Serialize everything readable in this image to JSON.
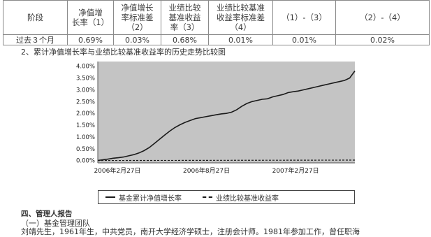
{
  "table": {
    "headers": [
      "阶段",
      "净值增\n长率（1）",
      "净值增长\n率标准差\n（2）",
      "业绩比较\n基准收益\n率（3）",
      "业绩比较基准\n收益率标准差\n（4）",
      "（1）-（3）",
      "（2）-（4）"
    ],
    "rows": [
      [
        "过去３个月",
        "0.69%",
        "0.03%",
        "0.68%",
        "0.01%",
        "0.01%",
        "0.02%"
      ]
    ]
  },
  "chart_caption": "2、累计净值增长率与业绩比较基准收益率的历史走势比较图",
  "chart_data": {
    "type": "line",
    "y_ticks": [
      "0.00%",
      "0.50%",
      "1.00%",
      "1.50%",
      "2.00%",
      "2.50%",
      "3.00%",
      "3.50%",
      "4.00%"
    ],
    "ylim": [
      -0.1,
      4.2
    ],
    "x_ticks": [
      "2006年2月27日",
      "2006年8月27日",
      "2007年2月27日"
    ],
    "xlim": [
      0,
      15
    ],
    "grid": false,
    "legend_position": "bottom",
    "colors": {
      "plot_bg": "#c4c4c4",
      "line": "#1a1a1a"
    },
    "series": [
      {
        "name": "基金累计净值增长率",
        "style": "solid",
        "x": [
          0,
          0.3,
          0.6,
          0.9,
          1.2,
          1.5,
          1.8,
          2.1,
          2.4,
          2.7,
          3.0,
          3.3,
          3.6,
          3.9,
          4.2,
          4.5,
          4.8,
          5.1,
          5.4,
          5.7,
          6.0,
          6.3,
          6.6,
          6.9,
          7.2,
          7.5,
          7.8,
          8.1,
          8.4,
          8.7,
          9.0,
          9.3,
          9.6,
          9.9,
          10.2,
          10.5,
          10.8,
          11.1,
          11.4,
          11.7,
          12.0,
          12.3,
          12.6,
          12.9,
          13.2,
          13.5,
          13.8,
          14.1,
          14.4,
          14.7,
          15.0
        ],
        "values": [
          0.0,
          0.03,
          0.06,
          0.1,
          0.12,
          0.15,
          0.2,
          0.25,
          0.32,
          0.42,
          0.55,
          0.72,
          0.9,
          1.08,
          1.25,
          1.4,
          1.52,
          1.62,
          1.7,
          1.78,
          1.82,
          1.86,
          1.9,
          1.94,
          1.98,
          2.0,
          2.05,
          2.15,
          2.3,
          2.42,
          2.5,
          2.55,
          2.6,
          2.62,
          2.7,
          2.75,
          2.8,
          2.88,
          2.92,
          2.95,
          3.0,
          3.05,
          3.1,
          3.15,
          3.2,
          3.25,
          3.3,
          3.35,
          3.4,
          3.5,
          3.8
        ]
      },
      {
        "name": "业绩比较基准收益率",
        "style": "dashed",
        "x": [
          0,
          15
        ],
        "values": [
          0.0,
          0.02
        ]
      }
    ]
  },
  "section": {
    "title": "四、管理人报告",
    "subtitle": "（一）基金管理团队",
    "body": "刘靖先生，1961年生，中共党员，南开大学经济学硕士，注册会计师。1981年参加工作，曾任职海"
  }
}
